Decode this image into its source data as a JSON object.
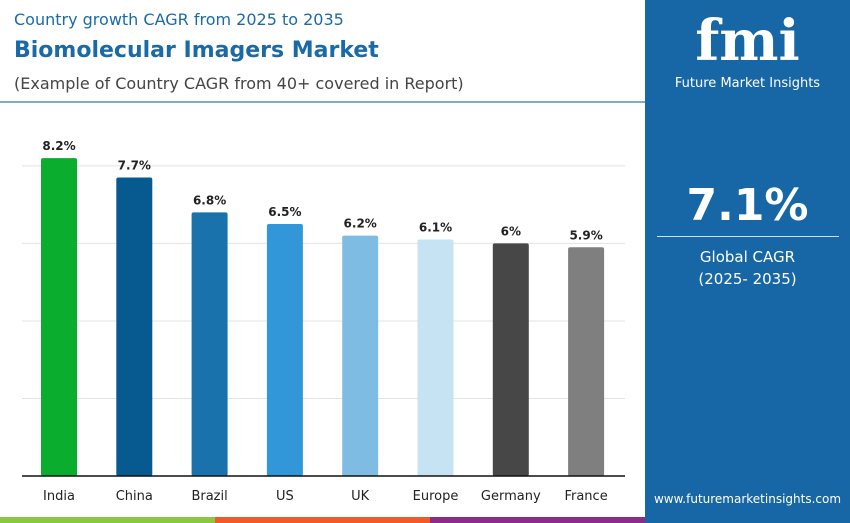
{
  "header": {
    "subtitle": "Country growth CAGR from 2025 to 2035",
    "title": "Biomolecular Imagers Market",
    "note": "(Example of Country CAGR from 40+ covered in Report)"
  },
  "panel": {
    "logo_text": "fmi",
    "brand": "Future Market Insights",
    "value": "7.1%",
    "label1": "Global CAGR",
    "label2": "(2025- 2035)",
    "url": "www.futuremarketinsights.com"
  },
  "colors": {
    "panel": "#1767a6",
    "bands": [
      "#8dc63f",
      "#f15a29",
      "#8b2c8b"
    ]
  },
  "chart_data": {
    "type": "bar",
    "title": "",
    "xlabel": "",
    "ylabel": "",
    "categories": [
      "India",
      "China",
      "Brazil",
      "US",
      "UK",
      "Europe",
      "Germany",
      "France"
    ],
    "values": [
      8.2,
      7.7,
      6.8,
      6.5,
      6.2,
      6.1,
      6.0,
      5.9
    ],
    "labels": [
      "8.2%",
      "7.7%",
      "6.8%",
      "6.5%",
      "6.2%",
      "6.1%",
      "6%",
      "5.9%"
    ],
    "colors": [
      "#0aad2e",
      "#075a8f",
      "#1a72ad",
      "#3197d8",
      "#7fbce3",
      "#c5e3f3",
      "#474747",
      "#7f7f7f"
    ],
    "grid": true,
    "gridlines": [
      2,
      4,
      6,
      8
    ],
    "ylim": [
      0,
      8.9
    ]
  }
}
